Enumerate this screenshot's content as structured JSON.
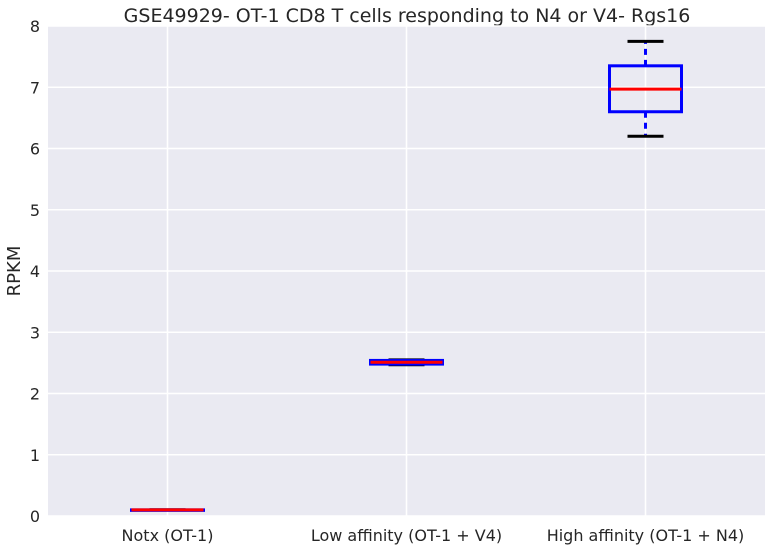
{
  "chart_data": {
    "type": "box",
    "title": "GSE49929- OT-1 CD8 T cells responding to N4 or V4- Rgs16",
    "xlabel": "",
    "ylabel": "RPKM",
    "ylim": [
      0,
      8
    ],
    "yticks": [
      0,
      1,
      2,
      3,
      4,
      5,
      6,
      7,
      8
    ],
    "grid": true,
    "categories": [
      "Notx (OT-1)",
      "Low affinity (OT-1 + V4)",
      "High affinity (OT-1 + N4)"
    ],
    "boxes": [
      {
        "whisker_low": 0.1,
        "q1": 0.1,
        "median": 0.1,
        "q3": 0.1,
        "whisker_high": 0.1
      },
      {
        "whisker_low": 2.47,
        "q1": 2.48,
        "median": 2.51,
        "q3": 2.54,
        "whisker_high": 2.55
      },
      {
        "whisker_low": 6.2,
        "q1": 6.6,
        "median": 6.97,
        "q3": 7.35,
        "whisker_high": 7.75
      }
    ],
    "colors": {
      "background": "#eaeaf2",
      "grid": "#ffffff",
      "box": "#0000ff",
      "median": "#ff0000",
      "whisker_cap": "#000000"
    }
  }
}
